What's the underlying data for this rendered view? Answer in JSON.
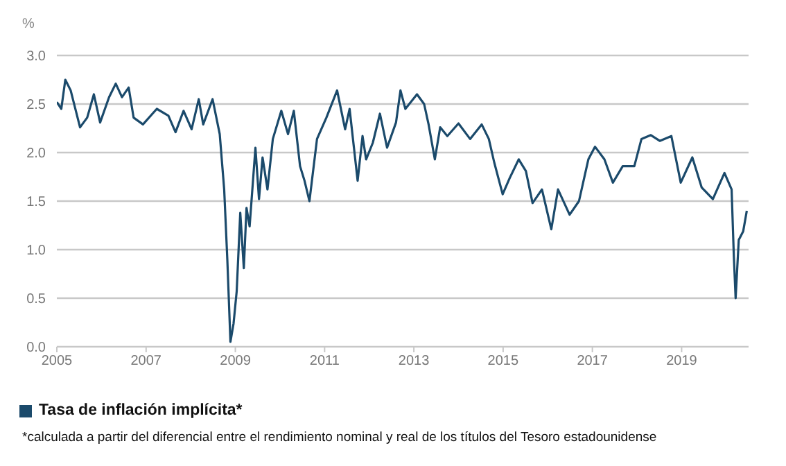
{
  "chart_data": {
    "type": "line",
    "ylabel": "%",
    "annotations": [
      "*calculada a partir del diferencial entre el rendimiento nominal y real de los títulos del Tesoro estadounidense"
    ],
    "xlim": [
      2005,
      2020.5
    ],
    "xticks": [
      2005,
      2007,
      2009,
      2011,
      2013,
      2015,
      2017,
      2019
    ],
    "ylim": [
      0,
      3
    ],
    "yticks": [
      {
        "value": 0,
        "label": "0.0"
      },
      {
        "value": 0.5,
        "label": "0.5"
      },
      {
        "value": 1,
        "label": "1.0"
      },
      {
        "value": 1.5,
        "label": "1.5"
      },
      {
        "value": 2,
        "label": "2.0"
      },
      {
        "value": 2.5,
        "label": "2.5"
      },
      {
        "value": 3,
        "label": "3.0"
      }
    ],
    "grid": "y",
    "legend": "bottom left",
    "marker": "none",
    "line_style": "solid",
    "series": [
      {
        "name": "Tasa de inflación implícita*",
        "color": "#1b4a6b",
        "x": [
          2005.0,
          2005.1,
          2005.19,
          2005.31,
          2005.52,
          2005.68,
          2005.83,
          2005.97,
          2006.17,
          2006.32,
          2006.46,
          2006.61,
          2006.72,
          2006.93,
          2007.24,
          2007.5,
          2007.66,
          2007.84,
          2008.02,
          2008.18,
          2008.28,
          2008.49,
          2008.65,
          2008.75,
          2008.82,
          2008.89,
          2008.96,
          2009.03,
          2009.11,
          2009.19,
          2009.25,
          2009.32,
          2009.45,
          2009.53,
          2009.61,
          2009.72,
          2009.84,
          2010.03,
          2010.18,
          2010.31,
          2010.45,
          2010.55,
          2010.66,
          2010.83,
          2011.04,
          2011.28,
          2011.46,
          2011.56,
          2011.74,
          2011.85,
          2011.93,
          2012.08,
          2012.24,
          2012.4,
          2012.6,
          2012.7,
          2012.81,
          2013.07,
          2013.23,
          2013.33,
          2013.47,
          2013.59,
          2013.75,
          2014.0,
          2014.26,
          2014.52,
          2014.68,
          2014.8,
          2014.99,
          2015.15,
          2015.35,
          2015.51,
          2015.66,
          2015.87,
          2016.08,
          2016.23,
          2016.49,
          2016.7,
          2016.91,
          2017.06,
          2017.27,
          2017.46,
          2017.68,
          2017.94,
          2018.1,
          2018.31,
          2018.51,
          2018.77,
          2018.98,
          2019.24,
          2019.45,
          2019.7,
          2019.96,
          2020.12,
          2020.17,
          2020.21,
          2020.28,
          2020.38,
          2020.46
        ],
        "values": [
          2.52,
          2.45,
          2.75,
          2.64,
          2.26,
          2.36,
          2.6,
          2.31,
          2.57,
          2.71,
          2.57,
          2.67,
          2.36,
          2.29,
          2.45,
          2.38,
          2.21,
          2.43,
          2.24,
          2.55,
          2.29,
          2.55,
          2.19,
          1.62,
          0.9,
          0.05,
          0.24,
          0.57,
          1.38,
          0.81,
          1.43,
          1.24,
          2.05,
          1.52,
          1.95,
          1.62,
          2.14,
          2.43,
          2.19,
          2.43,
          1.86,
          1.71,
          1.5,
          2.14,
          2.36,
          2.64,
          2.24,
          2.45,
          1.71,
          2.17,
          1.93,
          2.1,
          2.4,
          2.05,
          2.31,
          2.64,
          2.45,
          2.6,
          2.5,
          2.29,
          1.93,
          2.26,
          2.17,
          2.3,
          2.14,
          2.29,
          2.14,
          1.9,
          1.57,
          1.74,
          1.93,
          1.81,
          1.48,
          1.62,
          1.21,
          1.62,
          1.36,
          1.5,
          1.93,
          2.06,
          1.93,
          1.69,
          1.86,
          1.86,
          2.14,
          2.18,
          2.12,
          2.17,
          1.69,
          1.95,
          1.64,
          1.52,
          1.79,
          1.62,
          0.93,
          0.5,
          1.1,
          1.19,
          1.4
        ]
      }
    ]
  }
}
